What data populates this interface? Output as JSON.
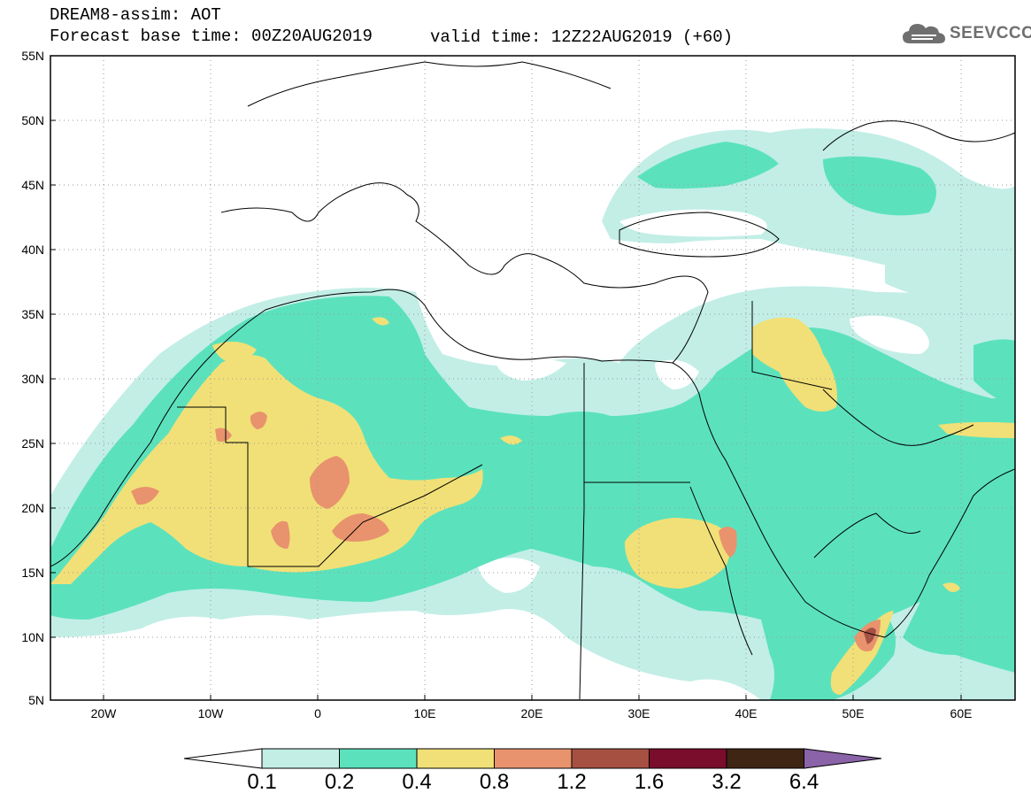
{
  "header": {
    "title": "DREAM8-assim: AOT",
    "base_time": "Forecast base time: 00Z20AUG2019",
    "valid_time": "valid time: 12Z22AUG2019 (+60)"
  },
  "logo": {
    "text": "SEEVCCC",
    "icon": "cloud-icon"
  },
  "map": {
    "lat_labels": [
      "55N",
      "50N",
      "45N",
      "40N",
      "35N",
      "30N",
      "25N",
      "20N",
      "15N",
      "10N",
      "5N"
    ],
    "lon_labels": [
      "20W",
      "10W",
      "0",
      "10E",
      "20E",
      "30E",
      "40E",
      "50E",
      "60E"
    ],
    "extent": {
      "lon_min": -25,
      "lon_max": 65,
      "lat_min": 5,
      "lat_max": 55
    },
    "gridlines": "dotted"
  },
  "colorbar": {
    "ticks": [
      "0.1",
      "0.2",
      "0.4",
      "0.8",
      "1.2",
      "1.6",
      "3.2",
      "6.4"
    ],
    "colors": [
      "#ffffff",
      "#c2eee6",
      "#5be2bd",
      "#f1e077",
      "#e8936d",
      "#a65042",
      "#7a0d2c",
      "#3f2514",
      "#8a63a8"
    ]
  }
}
